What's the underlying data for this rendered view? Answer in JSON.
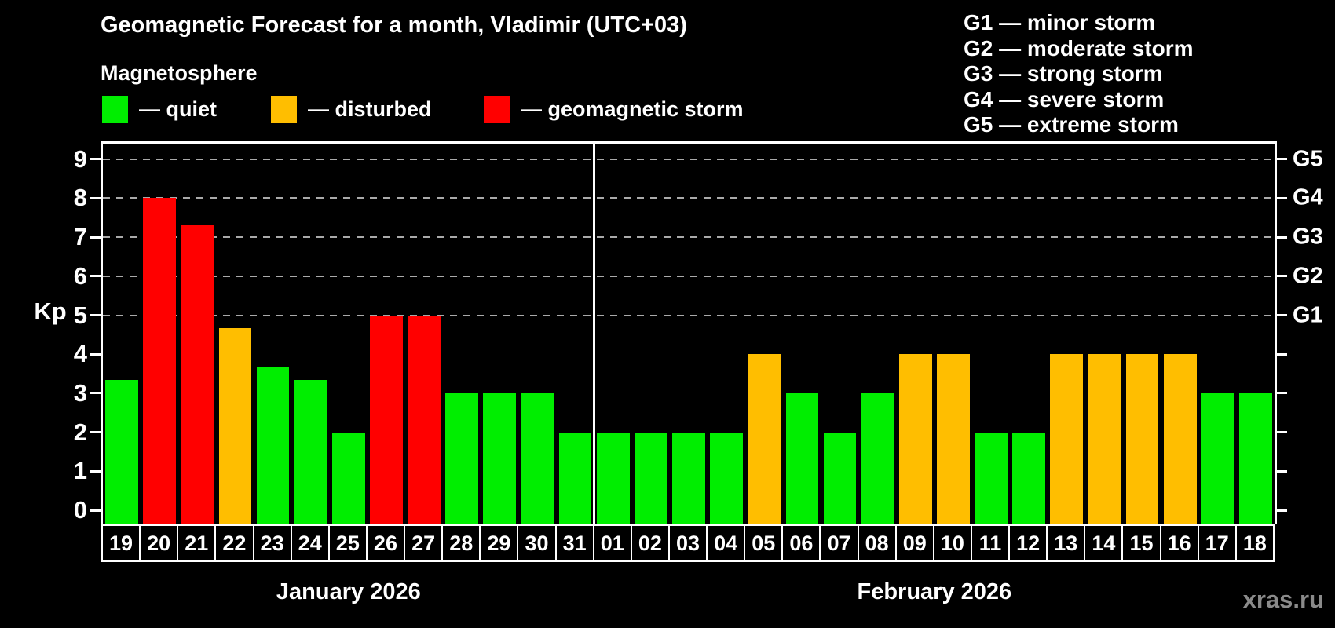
{
  "header": {
    "title": "Geomagnetic Forecast for a month, Vladimir (UTC+03)",
    "subtitle": "Magnetosphere",
    "legend": [
      {
        "key": "quiet",
        "label": "— quiet"
      },
      {
        "key": "disturbed",
        "label": "— disturbed"
      },
      {
        "key": "storm",
        "label": "— geomagnetic storm"
      }
    ]
  },
  "storm_scale_legend": [
    "G1 — minor storm",
    "G2 — moderate storm",
    "G3 — strong storm",
    "G4 — severe storm",
    "G5 — extreme storm"
  ],
  "watermark": "xras.ru",
  "chart_data": {
    "type": "bar",
    "title": "Geomagnetic Forecast for a month, Vladimir (UTC+03)",
    "ylabel": "Kp",
    "ylim": [
      0,
      9
    ],
    "yticks": [
      0,
      1,
      2,
      3,
      4,
      5,
      6,
      7,
      8,
      9
    ],
    "grid": "dashed horizontal lines at Kp 5,6,7,8,9 only",
    "gridlines_at": [
      5,
      6,
      7,
      8,
      9
    ],
    "right_axis_labels": [
      {
        "kp": 5,
        "label": "G1"
      },
      {
        "kp": 6,
        "label": "G2"
      },
      {
        "kp": 7,
        "label": "G3"
      },
      {
        "kp": 8,
        "label": "G4"
      },
      {
        "kp": 9,
        "label": "G5"
      }
    ],
    "series_colors": {
      "quiet": "#00ee00",
      "disturbed": "#ffbe00",
      "storm": "#ff0000"
    },
    "background_color": "#000000",
    "months": [
      {
        "label": "January 2026",
        "days": [
          {
            "day": "19",
            "kp": 3.33,
            "status": "quiet"
          },
          {
            "day": "20",
            "kp": 8.0,
            "status": "storm"
          },
          {
            "day": "21",
            "kp": 7.33,
            "status": "storm"
          },
          {
            "day": "22",
            "kp": 4.67,
            "status": "disturbed"
          },
          {
            "day": "23",
            "kp": 3.67,
            "status": "quiet"
          },
          {
            "day": "24",
            "kp": 3.33,
            "status": "quiet"
          },
          {
            "day": "25",
            "kp": 2.0,
            "status": "quiet"
          },
          {
            "day": "26",
            "kp": 5.0,
            "status": "storm"
          },
          {
            "day": "27",
            "kp": 5.0,
            "status": "storm"
          },
          {
            "day": "28",
            "kp": 3.0,
            "status": "quiet"
          },
          {
            "day": "29",
            "kp": 3.0,
            "status": "quiet"
          },
          {
            "day": "30",
            "kp": 3.0,
            "status": "quiet"
          },
          {
            "day": "31",
            "kp": 2.0,
            "status": "quiet"
          }
        ]
      },
      {
        "label": "February 2026",
        "days": [
          {
            "day": "01",
            "kp": 2.0,
            "status": "quiet"
          },
          {
            "day": "02",
            "kp": 2.0,
            "status": "quiet"
          },
          {
            "day": "03",
            "kp": 2.0,
            "status": "quiet"
          },
          {
            "day": "04",
            "kp": 2.0,
            "status": "quiet"
          },
          {
            "day": "05",
            "kp": 4.0,
            "status": "disturbed"
          },
          {
            "day": "06",
            "kp": 3.0,
            "status": "quiet"
          },
          {
            "day": "07",
            "kp": 2.0,
            "status": "quiet"
          },
          {
            "day": "08",
            "kp": 3.0,
            "status": "quiet"
          },
          {
            "day": "09",
            "kp": 4.0,
            "status": "disturbed"
          },
          {
            "day": "10",
            "kp": 4.0,
            "status": "disturbed"
          },
          {
            "day": "11",
            "kp": 2.0,
            "status": "quiet"
          },
          {
            "day": "12",
            "kp": 2.0,
            "status": "quiet"
          },
          {
            "day": "13",
            "kp": 4.0,
            "status": "disturbed"
          },
          {
            "day": "14",
            "kp": 4.0,
            "status": "disturbed"
          },
          {
            "day": "15",
            "kp": 4.0,
            "status": "disturbed"
          },
          {
            "day": "16",
            "kp": 4.0,
            "status": "disturbed"
          },
          {
            "day": "17",
            "kp": 3.0,
            "status": "quiet"
          },
          {
            "day": "18",
            "kp": 3.0,
            "status": "quiet"
          }
        ]
      }
    ]
  }
}
